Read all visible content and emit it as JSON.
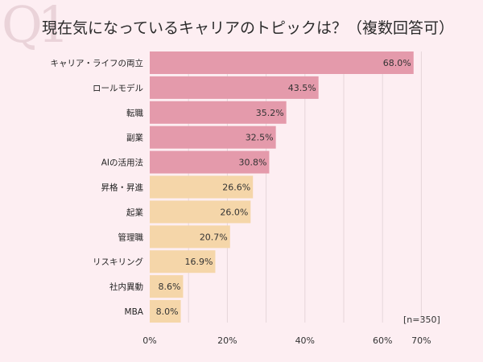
{
  "q_mark": "Q1",
  "title": "現在気になっているキャリアのトピックは？（複数回答可）",
  "chart_data": {
    "type": "bar",
    "orientation": "horizontal",
    "title": "現在気になっているキャリアのトピックは？（複数回答可）",
    "categories": [
      "キャリア・ライフの両立",
      "ロールモデル",
      "転職",
      "副業",
      "AIの活用法",
      "昇格・昇進",
      "起業",
      "管理職",
      "リスキリング",
      "社内異動",
      "MBA"
    ],
    "values": [
      68.0,
      43.5,
      35.2,
      32.5,
      30.8,
      26.6,
      26.0,
      20.7,
      16.9,
      8.6,
      8.0
    ],
    "value_labels": [
      "68.0%",
      "43.5%",
      "35.2%",
      "32.5%",
      "30.8%",
      "26.6%",
      "26.0%",
      "20.7%",
      "16.9%",
      "8.6%",
      "8.0%"
    ],
    "colors": [
      "#e49aab",
      "#e49aab",
      "#e49aab",
      "#e49aab",
      "#e49aab",
      "#f5d6a9",
      "#f5d6a9",
      "#f5d6a9",
      "#f5d6a9",
      "#f5d6a9",
      "#f5d6a9"
    ],
    "xlim": [
      0,
      70
    ],
    "x_ticks": [
      0,
      20,
      40,
      60,
      70
    ],
    "x_tick_labels": [
      "0%",
      "20%",
      "40%",
      "60%",
      "70%"
    ],
    "grid": true,
    "annotation": "[n=350]"
  }
}
